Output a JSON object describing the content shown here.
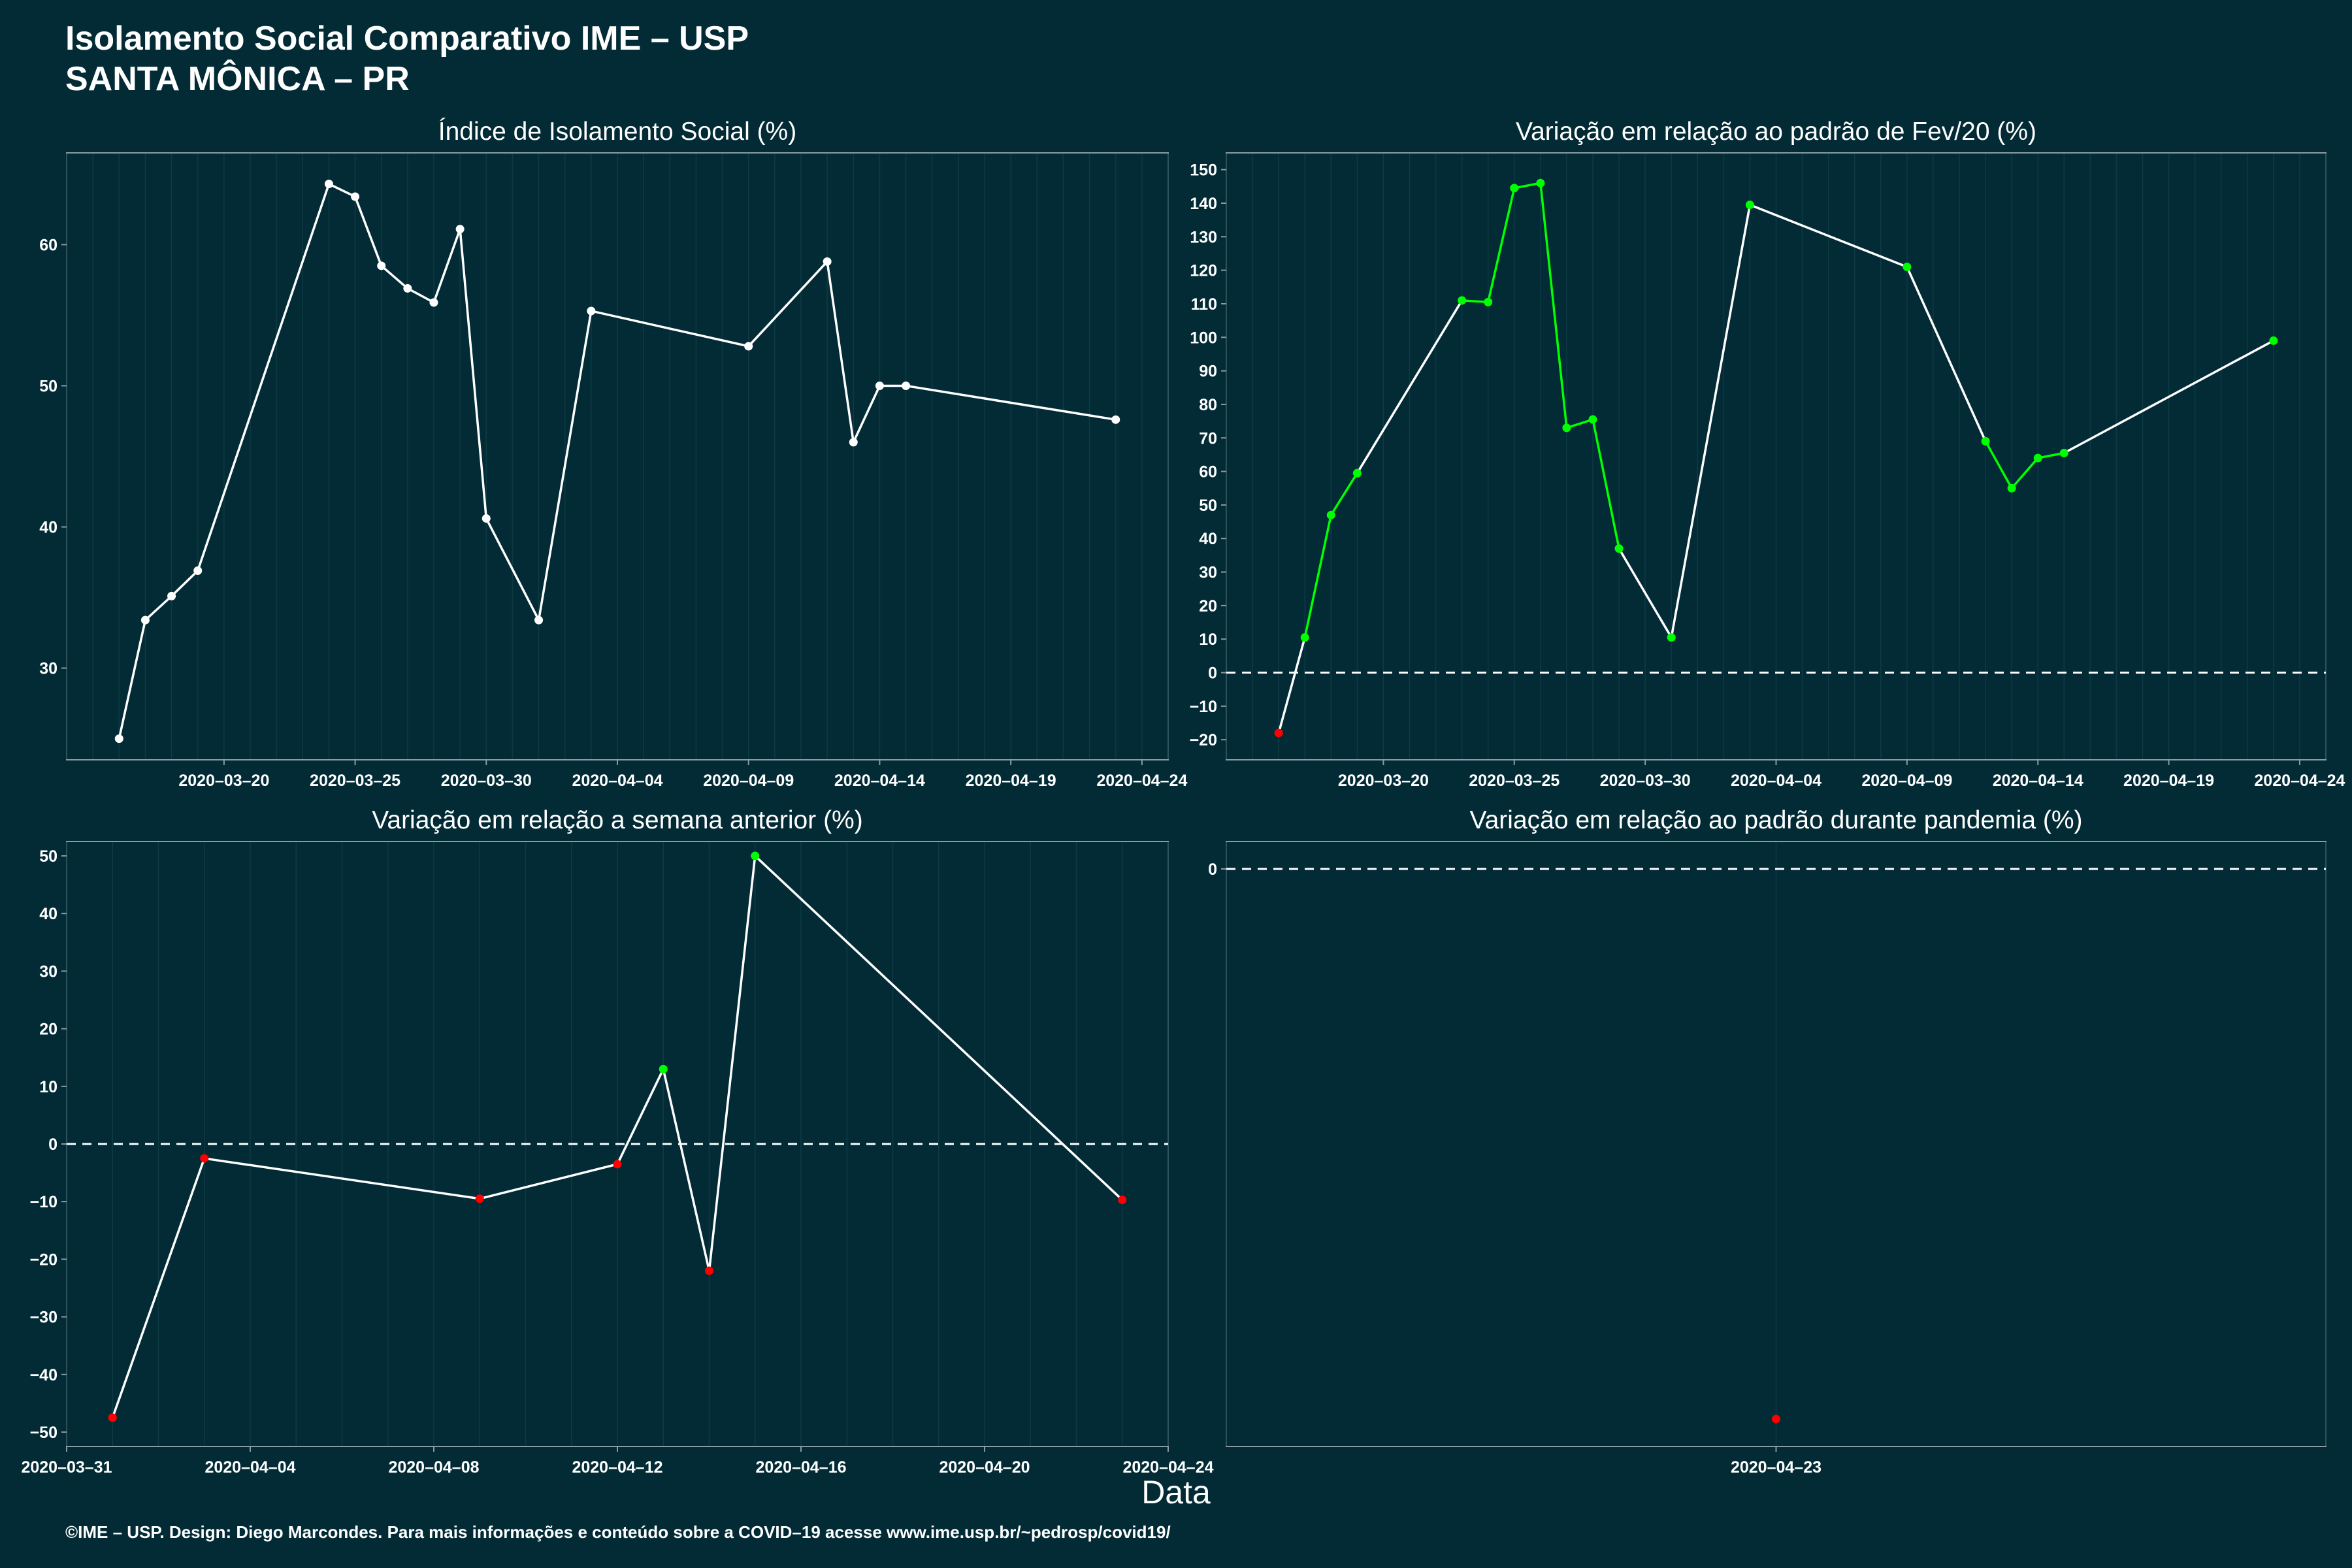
{
  "header": {
    "title_line1": "Isolamento Social Comparativo IME – USP",
    "title_line2": "SANTA MÔNICA – PR"
  },
  "xlabel": "Data",
  "footer": "©IME – USP. Design: Diego Marcondes. Para mais informações e conteúdo sobre a COVID–19 acesse www.ime.usp.br/~pedrosp/covid19/",
  "colors": {
    "background": "#022b36",
    "line_white": "#ffffff",
    "increase": "#00ff00",
    "decrease": "#ff0000",
    "grid": "#0e3a44"
  },
  "chart_data": [
    {
      "type": "line",
      "title": "Índice de Isolamento Social (%)",
      "x_ticks": [
        "2020–03–20",
        "2020–03–25",
        "2020–03–30",
        "2020–04–04",
        "2020–04–09",
        "2020–04–14",
        "2020–04–19",
        "2020–04–24"
      ],
      "y_ticks": [
        30,
        40,
        50,
        60
      ],
      "xlim": [
        "2020-03-14",
        "2020-04-25"
      ],
      "ylim": [
        23.5,
        66.5
      ],
      "reference_line": null,
      "series": [
        {
          "color": "white",
          "points": [
            [
              "2020-03-16",
              25.0
            ],
            [
              "2020-03-17",
              33.4
            ],
            [
              "2020-03-18",
              35.1
            ],
            [
              "2020-03-19",
              36.9
            ],
            [
              "2020-03-24",
              64.3
            ],
            [
              "2020-03-25",
              63.4
            ],
            [
              "2020-03-26",
              58.5
            ],
            [
              "2020-03-27",
              56.9
            ],
            [
              "2020-03-28",
              55.9
            ],
            [
              "2020-03-29",
              61.1
            ],
            [
              "2020-03-30",
              40.6
            ],
            [
              "2020-04-01",
              33.4
            ],
            [
              "2020-04-03",
              55.3
            ],
            [
              "2020-04-09",
              52.8
            ],
            [
              "2020-04-12",
              58.8
            ],
            [
              "2020-04-13",
              46.0
            ],
            [
              "2020-04-14",
              50.0
            ],
            [
              "2020-04-15",
              50.0
            ],
            [
              "2020-04-23",
              47.6
            ]
          ]
        }
      ]
    },
    {
      "type": "line",
      "title": "Variação em relação ao padrão de Fev/20 (%)",
      "x_ticks": [
        "2020–03–20",
        "2020–03–25",
        "2020–03–30",
        "2020–04–04",
        "2020–04–09",
        "2020–04–14",
        "2020–04–19",
        "2020–04–24"
      ],
      "y_ticks": [
        -20,
        -10,
        0,
        10,
        20,
        30,
        40,
        50,
        60,
        70,
        80,
        90,
        100,
        110,
        120,
        130,
        140,
        150
      ],
      "xlim": [
        "2020-03-14",
        "2020-04-25"
      ],
      "ylim": [
        -26,
        155
      ],
      "reference_line": 0,
      "series": [
        {
          "points": [
            [
              "2020-03-16",
              -18,
              "red"
            ],
            [
              "2020-03-17",
              10.5,
              "green"
            ],
            [
              "2020-03-18",
              47,
              "green"
            ],
            [
              "2020-03-19",
              59.5,
              "green"
            ],
            [
              "2020-03-23",
              111,
              "green"
            ],
            [
              "2020-03-24",
              110.5,
              "green"
            ],
            [
              "2020-03-25",
              144.5,
              "green"
            ],
            [
              "2020-03-26",
              146,
              "green"
            ],
            [
              "2020-03-27",
              73,
              "green"
            ],
            [
              "2020-03-28",
              75.5,
              "green"
            ],
            [
              "2020-03-29",
              37,
              "green"
            ],
            [
              "2020-03-31",
              10.5,
              "green"
            ],
            [
              "2020-04-03",
              139.5,
              "green"
            ],
            [
              "2020-04-09",
              121,
              "green"
            ],
            [
              "2020-04-12",
              69,
              "green"
            ],
            [
              "2020-04-13",
              55,
              "green"
            ],
            [
              "2020-04-14",
              64,
              "green"
            ],
            [
              "2020-04-15",
              65.5,
              "green"
            ],
            [
              "2020-04-23",
              99,
              "green"
            ]
          ]
        }
      ]
    },
    {
      "type": "line",
      "title": "Variação em relação a semana anterior (%)",
      "x_ticks": [
        "2020–03–31",
        "2020–04–04",
        "2020–04–08",
        "2020–04–12",
        "2020–04–16",
        "2020–04–20",
        "2020–04–24"
      ],
      "y_ticks": [
        -50,
        -40,
        -30,
        -20,
        -10,
        0,
        10,
        20,
        30,
        40,
        50
      ],
      "xlim": [
        "2020-03-31",
        "2020-04-24"
      ],
      "ylim": [
        -52.5,
        52.5
      ],
      "reference_line": 0,
      "series": [
        {
          "points": [
            [
              "2020-04-01",
              -47.5,
              "red"
            ],
            [
              "2020-04-03",
              -2.5,
              "red"
            ],
            [
              "2020-04-09",
              -9.5,
              "red"
            ],
            [
              "2020-04-12",
              -3.5,
              "red"
            ],
            [
              "2020-04-13",
              13,
              "green"
            ],
            [
              "2020-04-14",
              -22,
              "red"
            ],
            [
              "2020-04-15",
              50,
              "green"
            ],
            [
              "2020-04-23",
              -9.7,
              "red"
            ]
          ]
        }
      ]
    },
    {
      "type": "scatter",
      "title": "Variação em relação ao padrão durante pandemia (%)",
      "x_ticks": [
        "2020–04–23"
      ],
      "y_ticks": [
        0
      ],
      "xlim": [
        "2020-04-22",
        "2020-04-24"
      ],
      "reference_line": 0,
      "series": [
        {
          "points": [
            [
              "2020-04-23",
              null,
              "red"
            ]
          ]
        }
      ]
    }
  ]
}
